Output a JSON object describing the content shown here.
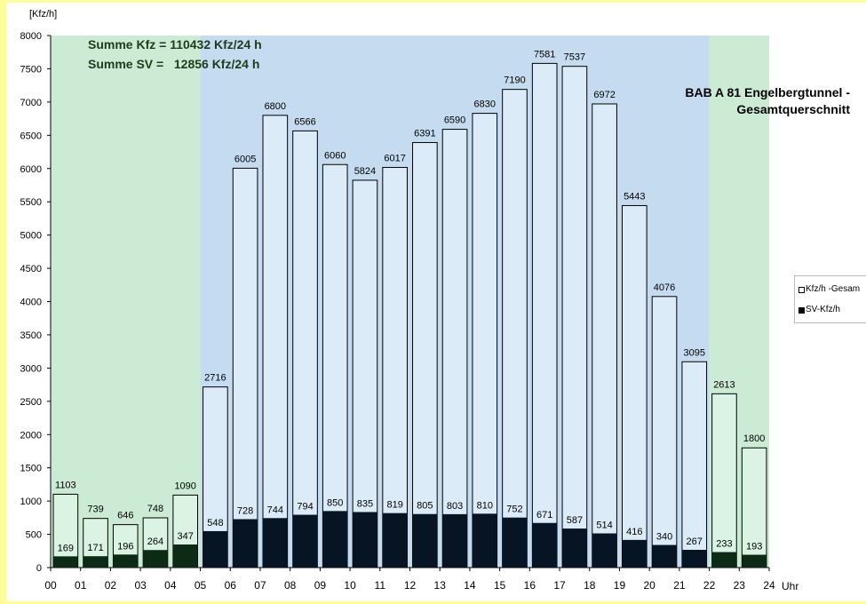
{
  "chart_data": {
    "type": "bar",
    "title_lines": [
      "BAB A 81 Engelbergtunnel -",
      "Gesamtquerschnitt"
    ],
    "ylabel": "[Kfz/h]",
    "xlabel": "Uhr",
    "ylim": [
      0,
      8000
    ],
    "yticks": [
      0,
      500,
      1000,
      1500,
      2000,
      2500,
      3000,
      3500,
      4000,
      4500,
      5000,
      5500,
      6000,
      6500,
      7000,
      7500,
      8000
    ],
    "xticks": [
      "00",
      "01",
      "02",
      "03",
      "04",
      "05",
      "06",
      "07",
      "08",
      "09",
      "10",
      "11",
      "12",
      "13",
      "14",
      "15",
      "16",
      "17",
      "18",
      "19",
      "20",
      "21",
      "22",
      "23",
      "24"
    ],
    "categories": [
      "00-01",
      "01-02",
      "02-03",
      "03-04",
      "04-05",
      "05-06",
      "06-07",
      "07-08",
      "08-09",
      "09-10",
      "10-11",
      "11-12",
      "12-13",
      "13-14",
      "14-15",
      "15-16",
      "16-17",
      "17-18",
      "18-19",
      "19-20",
      "20-21",
      "21-22",
      "22-23",
      "23-24"
    ],
    "series": [
      {
        "name": "Kfz/h -Gesam",
        "values": [
          1103,
          739,
          646,
          748,
          1090,
          2716,
          6005,
          6800,
          6566,
          6060,
          5824,
          6017,
          6391,
          6590,
          6830,
          7190,
          7581,
          7537,
          6972,
          5443,
          4076,
          3095,
          2613,
          1800
        ]
      },
      {
        "name": "SV-Kfz/h",
        "values": [
          169,
          171,
          196,
          264,
          347,
          548,
          728,
          744,
          794,
          850,
          835,
          819,
          805,
          803,
          810,
          752,
          671,
          587,
          514,
          416,
          340,
          267,
          233,
          193
        ]
      }
    ],
    "annotations": [
      "Summe Kfz = 110432 Kfz/24 h",
      "Summe SV =   12856 Kfz/24 h"
    ],
    "background_bands": [
      {
        "from_hour": 0,
        "to_hour": 5,
        "color": "#cbebd4"
      },
      {
        "from_hour": 5,
        "to_hour": 22,
        "color": "#c5dcf0"
      },
      {
        "from_hour": 22,
        "to_hour": 24,
        "color": "#cbebd4"
      }
    ],
    "colors": {
      "night_bar_fill": "#dbf3e3",
      "day_bar_fill": "#dcebf8",
      "night_heavy_fill": "#0c2a16",
      "day_heavy_fill": "#071423",
      "bar_stroke": "#000000"
    },
    "grid": false,
    "legend_position": "right"
  }
}
